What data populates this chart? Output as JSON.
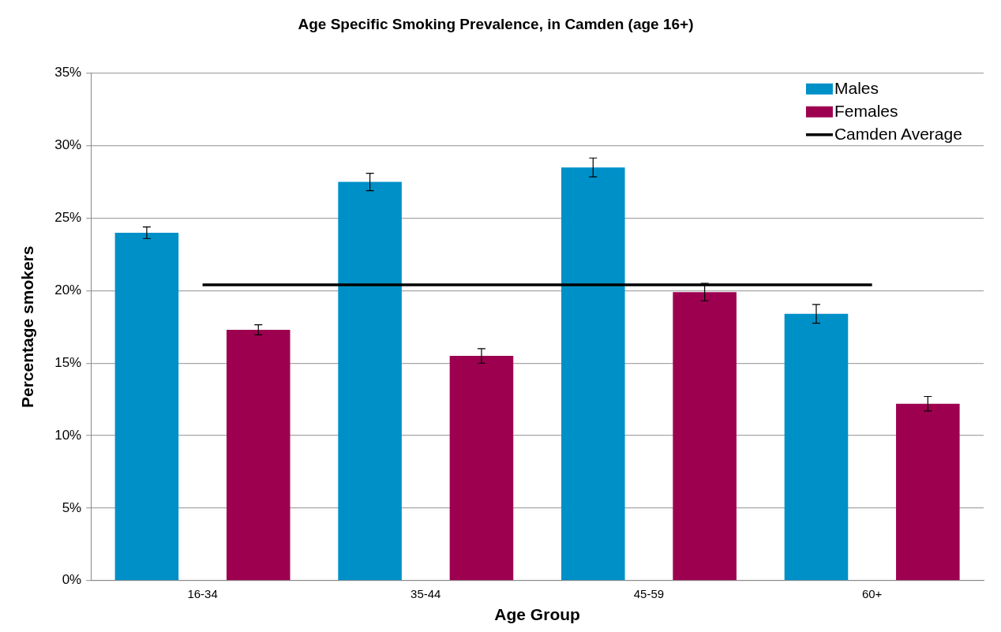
{
  "chart_data": {
    "type": "bar",
    "title": "Age Specific Smoking Prevalence, in Camden (age 16+)",
    "xlabel": "Age Group",
    "ylabel": "Percentage smokers",
    "categories": [
      "16-34",
      "35-44",
      "45-59",
      "60+"
    ],
    "series": [
      {
        "name": "Males",
        "color": "#0090c8",
        "values": [
          24.0,
          27.5,
          28.5,
          18.4
        ],
        "errors": [
          0.4,
          0.6,
          0.65,
          0.65
        ]
      },
      {
        "name": "Females",
        "color": "#9e0050",
        "values": [
          17.3,
          15.5,
          19.9,
          12.2
        ],
        "errors": [
          0.35,
          0.5,
          0.6,
          0.5
        ]
      },
      {
        "name": "Camden Average",
        "type": "line",
        "color": "#000000",
        "values": [
          20.4,
          20.4,
          20.4,
          20.4
        ],
        "marker": "none"
      }
    ],
    "ylim": [
      0,
      35
    ],
    "yticks": [
      {
        "value": 0,
        "label": "0%"
      },
      {
        "value": 5,
        "label": "5%"
      },
      {
        "value": 10,
        "label": "10%"
      },
      {
        "value": 15,
        "label": "15%"
      },
      {
        "value": 20,
        "label": "20%"
      },
      {
        "value": 25,
        "label": "25%"
      },
      {
        "value": 30,
        "label": "30%"
      },
      {
        "value": 35,
        "label": "35%"
      }
    ],
    "grid": "y",
    "legend": "top right"
  }
}
